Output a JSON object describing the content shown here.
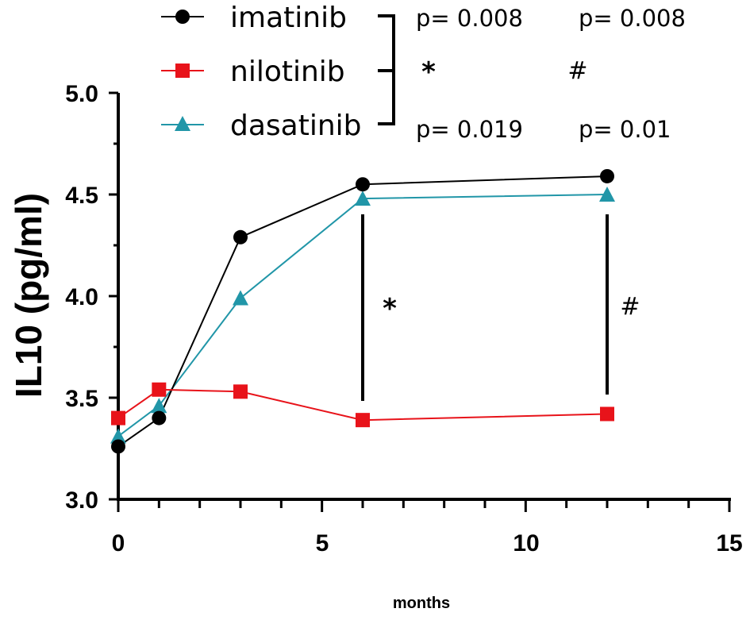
{
  "chart_data": {
    "type": "line",
    "title": "",
    "xlabel": "months",
    "ylabel": "IL10 (pg/ml)",
    "xlim": [
      0,
      15
    ],
    "ylim": [
      3.0,
      5.0
    ],
    "x_ticks": [
      "0",
      "5",
      "10",
      "15"
    ],
    "y_ticks": [
      "3.0",
      "3.5",
      "4.0",
      "4.5",
      "5.0"
    ],
    "grid": false,
    "legend_position": "top",
    "series": [
      {
        "name": "imatinib",
        "color": "#000000",
        "marker": "circle",
        "x": [
          0,
          1,
          3,
          6,
          12
        ],
        "values": [
          3.26,
          3.4,
          4.29,
          4.55,
          4.59
        ]
      },
      {
        "name": "nilotinib",
        "color": "#e8131a",
        "marker": "square",
        "x": [
          0,
          1,
          3,
          6,
          12
        ],
        "values": [
          3.4,
          3.54,
          3.53,
          3.39,
          3.42
        ]
      },
      {
        "name": "dasatinib",
        "color": "#2196a8",
        "marker": "triangle",
        "x": [
          0,
          1,
          3,
          6,
          12
        ],
        "values": [
          3.31,
          3.46,
          3.99,
          4.48,
          4.5
        ]
      }
    ],
    "significance": {
      "symbol_6": "*",
      "symbol_12": "#",
      "pvalues_top": [
        "p= 0.008",
        "p= 0.008"
      ],
      "pvalues_bottom": [
        "p= 0.019",
        "p= 0.01"
      ]
    }
  }
}
